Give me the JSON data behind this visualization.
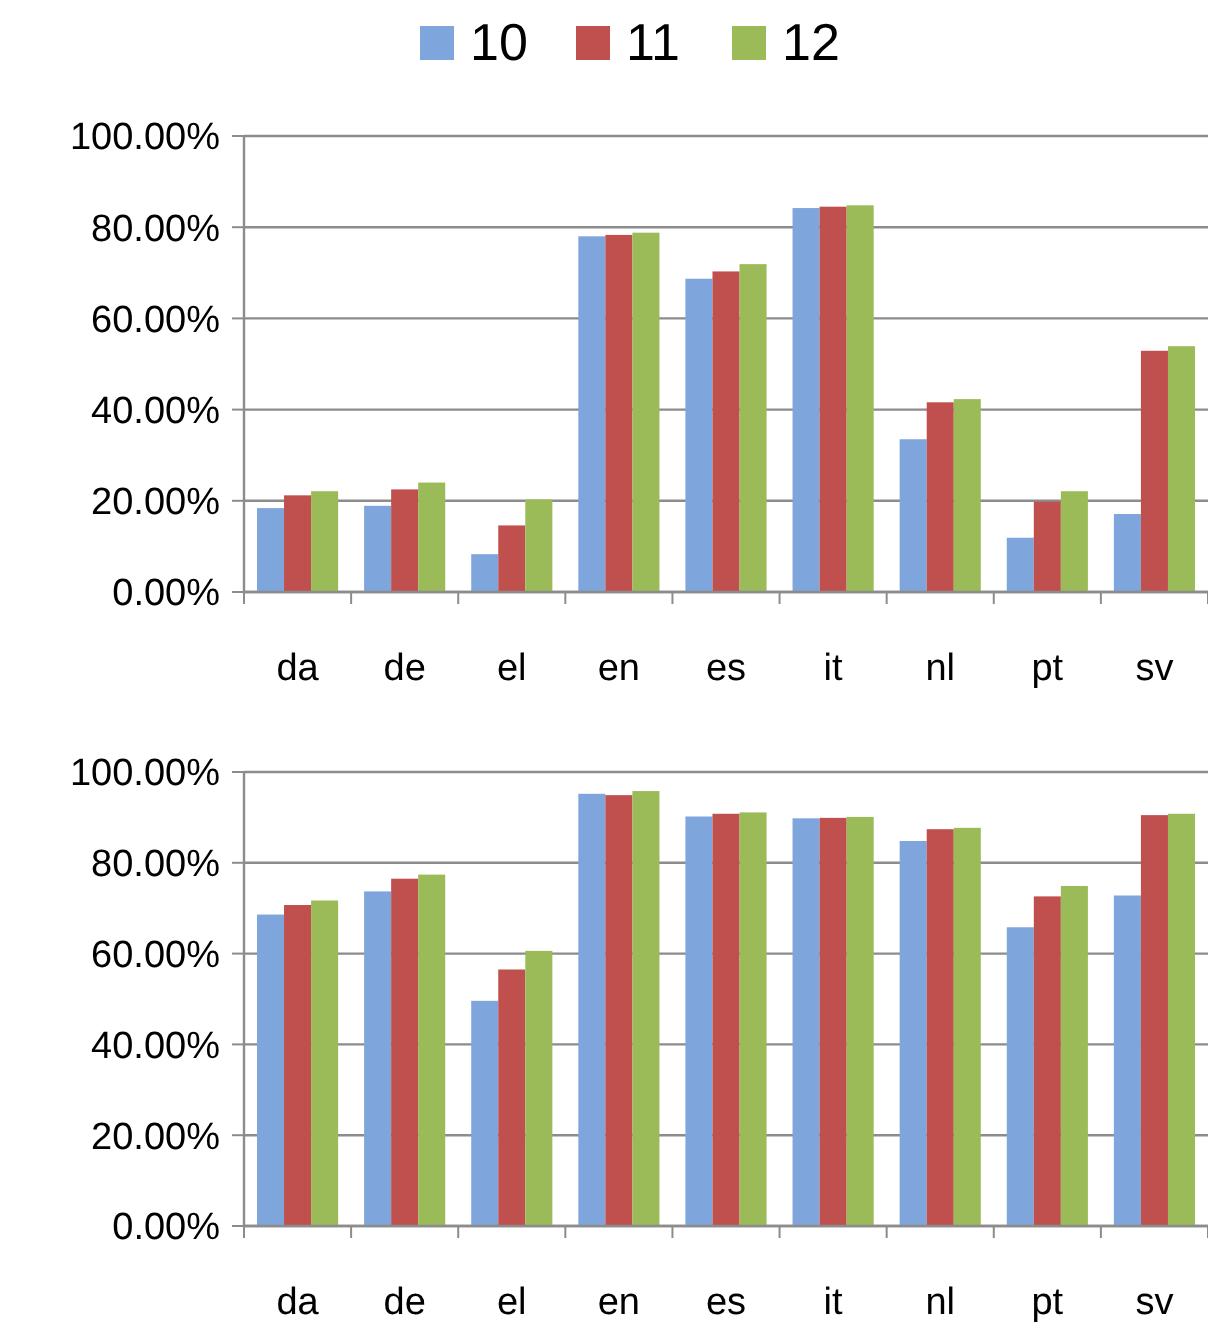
{
  "chart_data": [
    {
      "type": "bar",
      "categories": [
        "da",
        "de",
        "el",
        "en",
        "es",
        "it",
        "nl",
        "pt",
        "sv"
      ],
      "series": [
        {
          "name": "10",
          "color": "#7fa6dc",
          "values": [
            18.4,
            18.9,
            8.3,
            78.0,
            68.7,
            84.2,
            33.5,
            11.9,
            17.1
          ]
        },
        {
          "name": "11",
          "color": "#c0504d",
          "values": [
            21.2,
            22.5,
            14.6,
            78.3,
            70.3,
            84.5,
            41.6,
            19.8,
            52.9
          ]
        },
        {
          "name": "12",
          "color": "#9bbb59",
          "values": [
            22.1,
            24.0,
            20.3,
            78.8,
            71.9,
            84.8,
            42.3,
            22.1,
            53.9
          ]
        }
      ],
      "ylim": [
        0,
        100
      ],
      "yticks": [
        {
          "value": 0,
          "label": "0.00%"
        },
        {
          "value": 20,
          "label": "20.00%"
        },
        {
          "value": 40,
          "label": "40.00%"
        },
        {
          "value": 60,
          "label": "60.00%"
        },
        {
          "value": 80,
          "label": "80.00%"
        },
        {
          "value": 100,
          "label": "100.00%"
        }
      ],
      "grid": "y",
      "legend": "top"
    },
    {
      "type": "bar",
      "categories": [
        "da",
        "de",
        "el",
        "en",
        "es",
        "it",
        "nl",
        "pt",
        "sv"
      ],
      "series": [
        {
          "color": "#7fa6dc",
          "values": [
            68.6,
            73.7,
            49.6,
            95.2,
            90.2,
            89.8,
            84.8,
            65.8,
            72.8
          ]
        },
        {
          "color": "#c0504d",
          "values": [
            70.7,
            76.5,
            56.5,
            94.9,
            90.8,
            89.9,
            87.4,
            72.6,
            90.5
          ]
        },
        {
          "color": "#9bbb59",
          "values": [
            71.7,
            77.4,
            60.6,
            95.8,
            91.1,
            90.1,
            87.7,
            74.9,
            90.8
          ]
        }
      ],
      "ylim": [
        0,
        100
      ],
      "yticks": [
        {
          "value": 0,
          "label": "0.00%"
        },
        {
          "value": 20,
          "label": "20.00%"
        },
        {
          "value": 40,
          "label": "40.00%"
        },
        {
          "value": 60,
          "label": "60.00%"
        },
        {
          "value": 80,
          "label": "80.00%"
        },
        {
          "value": 100,
          "label": "100.00%"
        }
      ],
      "grid": "y"
    }
  ]
}
